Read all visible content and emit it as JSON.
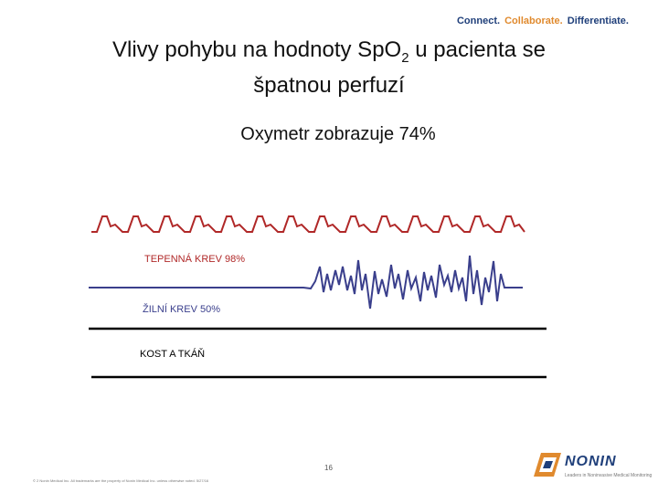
{
  "tagline": {
    "connect": "Connect.",
    "collaborate": "Collaborate.",
    "differentiate": "Differentiate.",
    "colors": {
      "connect": "#1f3f7a",
      "collaborate": "#e08a2e",
      "differentiate": "#1f3f7a"
    }
  },
  "title": {
    "main": "Vlivy pohybu na hodnoty Sp",
    "o": "O",
    "sub": "2",
    "rest": " u pacienta se",
    "line2": "špatnou perfuzí"
  },
  "subtitle": "Oxymetr zobrazuje 74%",
  "labels": {
    "arterial": "TEPENNÁ KREV 98%",
    "venous": "ŽILNÍ KREV 50%",
    "tissue": "KOST A TKÁŇ"
  },
  "colors": {
    "arterial": "#b02828",
    "venous": "#3a3f8c",
    "tissue": "#000000"
  },
  "page_number": "16",
  "footer": "© 2 Nonin Medical Inc. All trademarks are the property of Nonin Medical Inc. unless otherwise noted. 5/27/16",
  "logo": {
    "name": "NONIN",
    "sub": "Leaders in Noninvasive Medical Monitoring",
    "icon": "nonin-logo-icon"
  }
}
